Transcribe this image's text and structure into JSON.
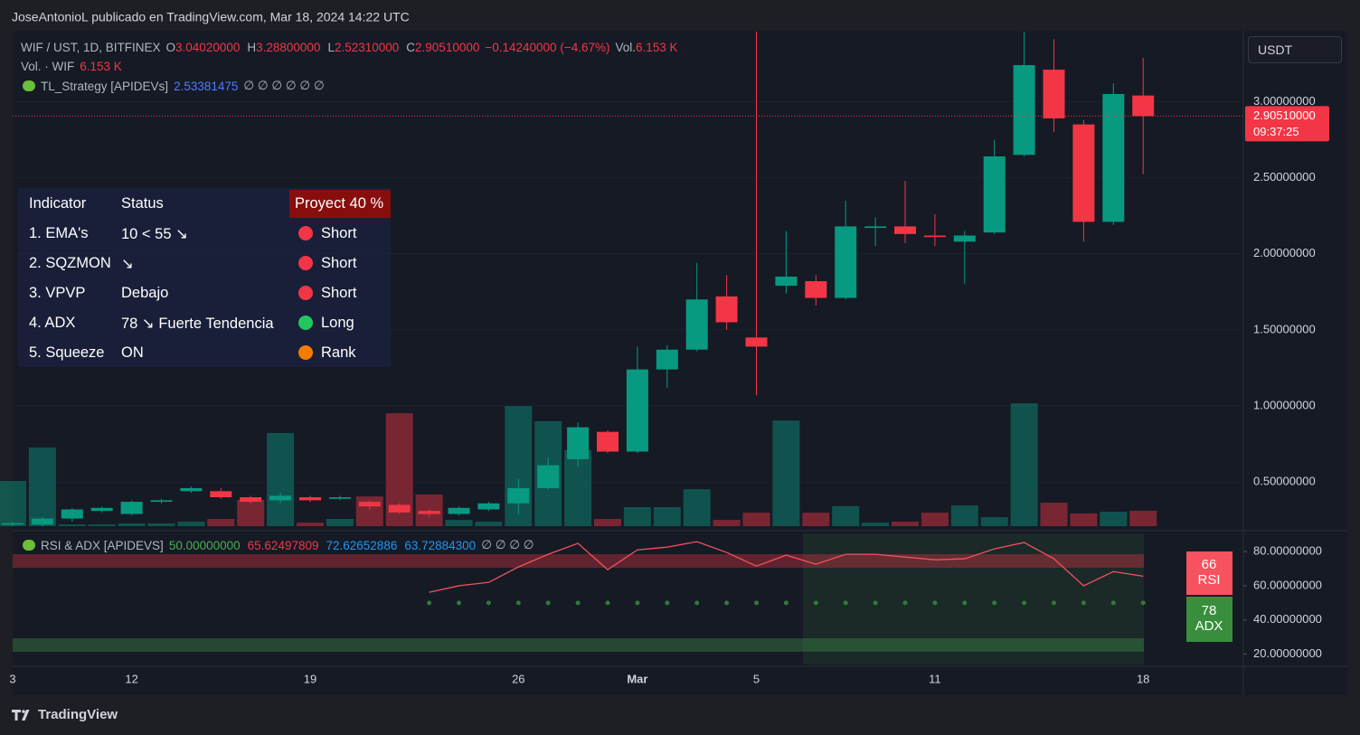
{
  "header": {
    "attribution": "JoseAntonioL publicado en TradingView.com, Mar 18, 2024 14:22 UTC",
    "brand": "TradingView",
    "currency_button": "USDT"
  },
  "chart_data": {
    "type": "candlestick",
    "symbol": "WIF / UST, 1D, BITFINEX",
    "ohlc_legend": [
      {
        "label": "O",
        "value": "3.04020000"
      },
      {
        "label": "H",
        "value": "3.28800000"
      },
      {
        "label": "L",
        "value": "2.52310000"
      },
      {
        "label": "C",
        "value": "2.90510000"
      }
    ],
    "change": "−0.14240000 (−4.67%)",
    "vol_legend": {
      "label": "Vol.",
      "value": "6.153 K"
    },
    "vol_line": {
      "label": "Vol. · WIF",
      "value": "6.153 K"
    },
    "strategy": {
      "name": "TL_Strategy [APIDEVs]",
      "value": "2.53381475",
      "tail": "∅ ∅ ∅ ∅ ∅ ∅"
    },
    "price_tag": {
      "value": "2.90510000",
      "timer": "09:37:25"
    },
    "table": {
      "headers": [
        "Indicator",
        "Status",
        "Proyect 40 %"
      ],
      "rows": [
        [
          "1. EMA's",
          "10 < 55 ↘",
          "Short"
        ],
        [
          "2. SQZMON",
          "↘",
          "Short"
        ],
        [
          "3. VPVP",
          "Debajo",
          "Short"
        ],
        [
          "4. ADX",
          "78 ↘ Fuerte Tendencia",
          "Long"
        ],
        [
          "5. Squeeze",
          "ON",
          "Rank"
        ]
      ],
      "dot_colors": [
        "#f23645",
        "#f23645",
        "#f23645",
        "#22c55e",
        "#f57c00"
      ]
    },
    "categories": [
      "3",
      null,
      null,
      null,
      "12",
      null,
      null,
      null,
      null,
      null,
      "19",
      null,
      null,
      null,
      null,
      null,
      null,
      "26",
      null,
      null,
      null,
      "Mar",
      null,
      null,
      null,
      "5",
      null,
      null,
      null,
      null,
      null,
      "11",
      null,
      null,
      null,
      null,
      null,
      null,
      "18"
    ],
    "open": [
      0.22,
      0.22,
      0.26,
      0.31,
      0.29,
      0.37,
      0.44,
      0.44,
      0.4,
      0.38,
      0.4,
      0.39,
      0.37,
      0.35,
      0.31,
      0.29,
      0.32,
      0.36,
      0.46,
      0.65,
      0.83,
      0.7,
      1.24,
      1.37,
      1.72,
      1.45,
      1.79,
      1.82,
      1.71,
      2.17,
      2.18,
      2.12,
      2.08,
      2.14,
      2.65,
      3.21,
      2.85,
      2.21,
      3.0402
    ],
    "high": [
      0.24,
      0.27,
      0.33,
      0.34,
      0.38,
      0.39,
      0.47,
      0.46,
      0.41,
      0.43,
      0.41,
      0.41,
      0.38,
      0.36,
      0.32,
      0.34,
      0.37,
      0.52,
      0.66,
      0.89,
      0.84,
      1.39,
      1.4,
      1.94,
      1.86,
      3.46,
      2.15,
      1.86,
      2.35,
      2.24,
      2.48,
      2.26,
      2.15,
      2.75,
      3.46,
      3.41,
      2.88,
      3.12,
      3.288
    ],
    "low": [
      0.21,
      0.21,
      0.24,
      0.3,
      0.28,
      0.36,
      0.43,
      0.39,
      0.36,
      0.36,
      0.37,
      0.38,
      0.32,
      0.29,
      0.27,
      0.28,
      0.31,
      0.29,
      0.45,
      0.6,
      0.69,
      0.69,
      1.12,
      1.36,
      1.5,
      1.07,
      1.74,
      1.66,
      1.7,
      2.05,
      2.07,
      2.05,
      1.8,
      2.13,
      2.64,
      2.8,
      2.08,
      2.19,
      2.5231
    ],
    "close": [
      0.23,
      0.26,
      0.32,
      0.33,
      0.37,
      0.38,
      0.46,
      0.4,
      0.37,
      0.41,
      0.38,
      0.4,
      0.34,
      0.3,
      0.29,
      0.33,
      0.36,
      0.46,
      0.61,
      0.86,
      0.7,
      1.24,
      1.37,
      1.7,
      1.55,
      1.39,
      1.85,
      1.71,
      2.18,
      2.18,
      2.13,
      2.11,
      2.12,
      2.64,
      3.24,
      2.89,
      2.21,
      3.05,
      2.9051
    ],
    "volume": [
      18.1,
      31.5,
      0.7,
      0.7,
      1.1,
      1.1,
      1.8,
      2.9,
      10.5,
      37.3,
      1.4,
      2.9,
      11.9,
      45.2,
      12.7,
      2.5,
      1.8,
      48.1,
      42.0,
      30.4,
      2.9,
      7.6,
      7.6,
      14.8,
      2.5,
      5.4,
      42.3,
      5.4,
      8.0,
      1.4,
      1.8,
      5.4,
      8.3,
      3.6,
      49.2,
      9.4,
      5.1,
      5.8,
      6.153
    ],
    "volume_lim": [
      0,
      198
    ],
    "up_color": "#089981",
    "down_color": "#f23645",
    "ylim": [
      0.21,
      3.46
    ],
    "yticks": [
      {
        "value": 0.5,
        "label": "0.50000000"
      },
      {
        "value": 1,
        "label": "1.00000000"
      },
      {
        "value": 1.5,
        "label": "1.50000000"
      },
      {
        "value": 2,
        "label": "2.00000000"
      },
      {
        "value": 2.5,
        "label": "2.50000000"
      },
      {
        "value": 3,
        "label": "3.00000000"
      }
    ],
    "rsi_legend": {
      "name": "RSI & ADX [APIDEVS]",
      "values": [
        {
          "text": "50.00000000",
          "color": "#4caf50"
        },
        {
          "text": "65.62497809",
          "color": "#f23645"
        },
        {
          "text": "72.62652886",
          "color": "#2196f3"
        },
        {
          "text": "63.72884300",
          "color": "#2196f3"
        }
      ],
      "tail": "∅ ∅ ∅ ∅"
    },
    "rsi": [
      null,
      null,
      null,
      null,
      null,
      null,
      null,
      null,
      null,
      null,
      null,
      null,
      null,
      null,
      56.2,
      60,
      62,
      71,
      78.4,
      84.8,
      69.4,
      81,
      82.6,
      85.8,
      79.5,
      71.5,
      77.9,
      72.6,
      78.4,
      78.4,
      76.8,
      75.2,
      75.8,
      81.6,
      85.3,
      75.8,
      60,
      68.3,
      65.6
    ],
    "rsi_color": "#f0525f",
    "rsi_midline": 50,
    "rsi_lim": [
      15,
      88
    ],
    "rsi_ticks": [
      {
        "value": 20,
        "label": "20.00000000"
      },
      {
        "value": 40,
        "label": "40.00000000"
      },
      {
        "value": 60,
        "label": "60.00000000"
      },
      {
        "value": 80,
        "label": "80.00000000"
      }
    ],
    "rsi_badge": {
      "value": "66",
      "label": "RSI"
    },
    "adx_badge": {
      "value": "78",
      "label": "ADX"
    }
  }
}
